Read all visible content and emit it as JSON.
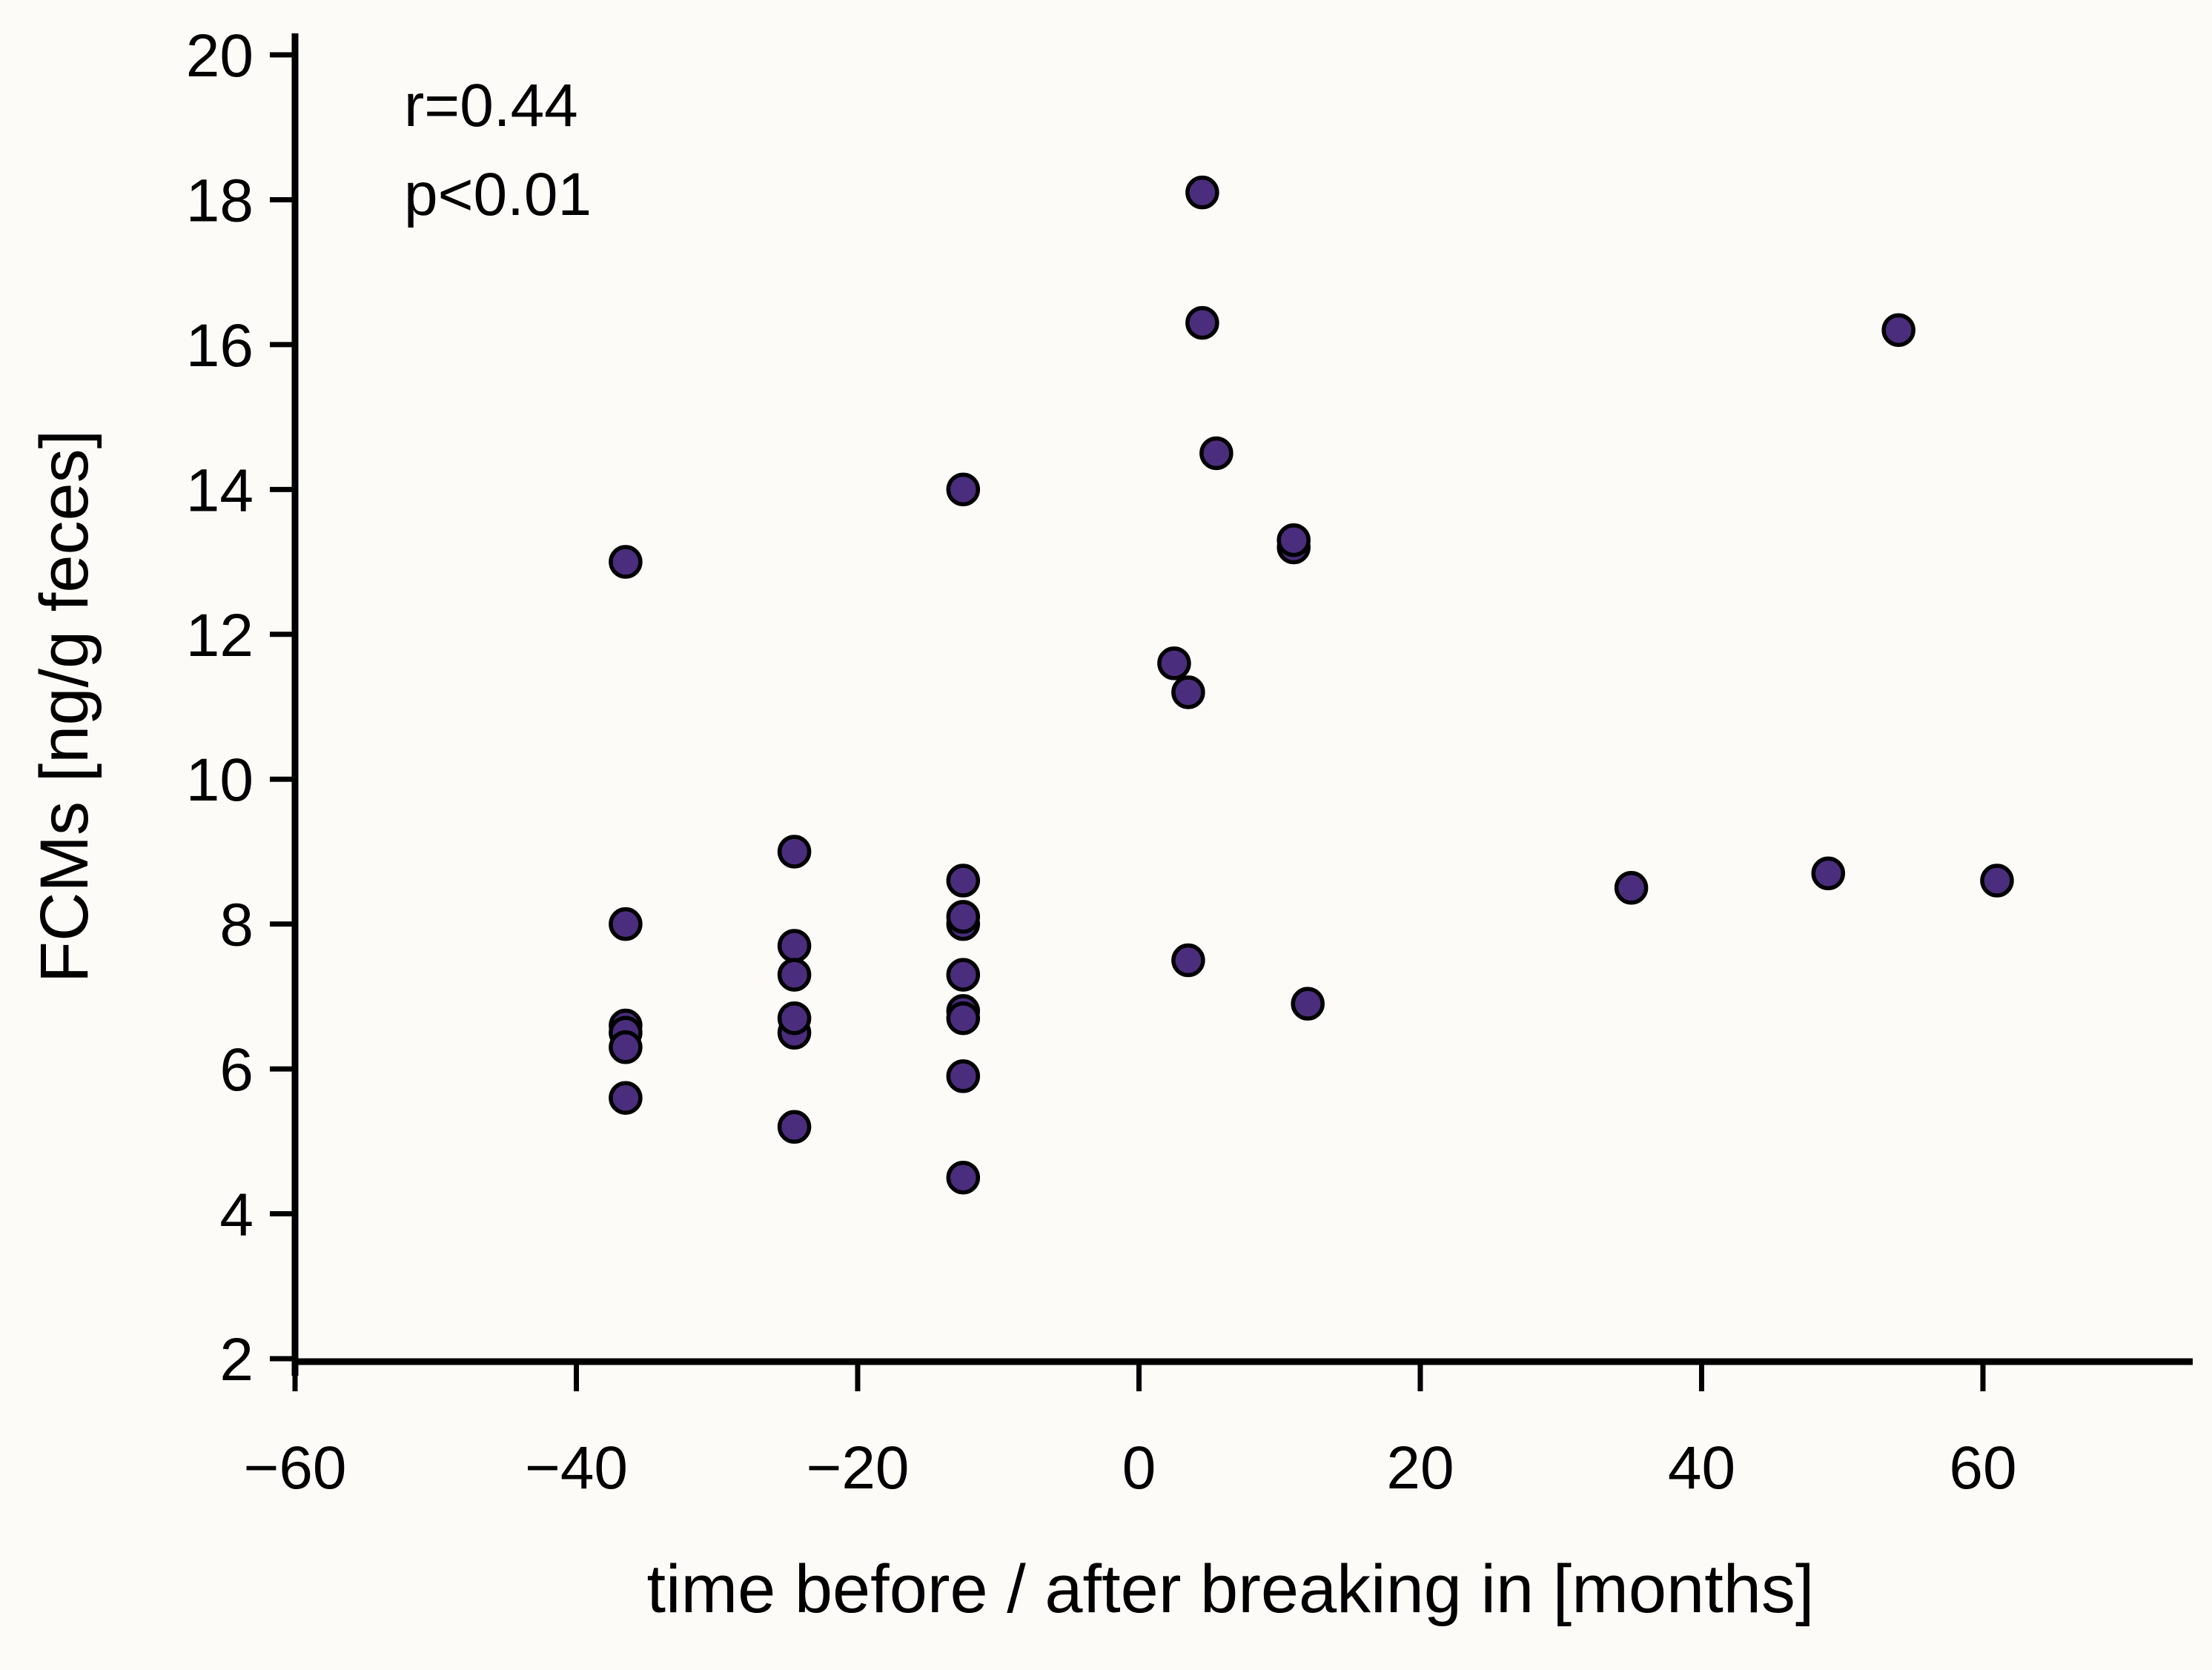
{
  "figure": {
    "background": "#fcfbf8",
    "text_color": "#000000"
  },
  "chart_data": {
    "type": "scatter",
    "title": "",
    "xlabel": "time before / after breaking in [months]",
    "ylabel": "FCMs [ng/g feces]",
    "xlim": [
      -60,
      75
    ],
    "ylim": [
      2,
      20
    ],
    "xticks": [
      -60,
      -40,
      -20,
      0,
      20,
      40,
      60
    ],
    "yticks": [
      2,
      4,
      6,
      8,
      10,
      12,
      14,
      16,
      18,
      20
    ],
    "grid": false,
    "legend": null,
    "annotation": [
      "r=0.44",
      "p<0.01"
    ],
    "marker": {
      "fill": "#4b2d7d",
      "stroke": "#000000"
    },
    "points": [
      {
        "x": -36.5,
        "y": 13.0
      },
      {
        "x": -36.5,
        "y": 8.0
      },
      {
        "x": -36.5,
        "y": 6.6
      },
      {
        "x": -36.5,
        "y": 6.5
      },
      {
        "x": -36.5,
        "y": 6.3
      },
      {
        "x": -36.5,
        "y": 5.6
      },
      {
        "x": -24.5,
        "y": 9.0
      },
      {
        "x": -24.5,
        "y": 7.7
      },
      {
        "x": -24.5,
        "y": 7.3
      },
      {
        "x": -24.5,
        "y": 6.5
      },
      {
        "x": -24.5,
        "y": 6.7
      },
      {
        "x": -24.5,
        "y": 5.2
      },
      {
        "x": -12.5,
        "y": 14.0
      },
      {
        "x": -12.5,
        "y": 8.0
      },
      {
        "x": -12.5,
        "y": 8.1
      },
      {
        "x": -12.5,
        "y": 8.6
      },
      {
        "x": -12.5,
        "y": 7.3
      },
      {
        "x": -12.5,
        "y": 6.8
      },
      {
        "x": -12.5,
        "y": 6.7
      },
      {
        "x": -12.5,
        "y": 5.9
      },
      {
        "x": -12.5,
        "y": 4.5
      },
      {
        "x": 2.5,
        "y": 11.6
      },
      {
        "x": 3.5,
        "y": 11.2
      },
      {
        "x": 3.5,
        "y": 7.5
      },
      {
        "x": 4.5,
        "y": 18.1
      },
      {
        "x": 4.5,
        "y": 16.3
      },
      {
        "x": 5.5,
        "y": 14.5
      },
      {
        "x": 11,
        "y": 13.2
      },
      {
        "x": 11,
        "y": 13.3
      },
      {
        "x": 12,
        "y": 6.9
      },
      {
        "x": 35,
        "y": 8.5
      },
      {
        "x": 49,
        "y": 8.7
      },
      {
        "x": 54,
        "y": 16.2
      },
      {
        "x": 61,
        "y": 8.6
      }
    ]
  }
}
